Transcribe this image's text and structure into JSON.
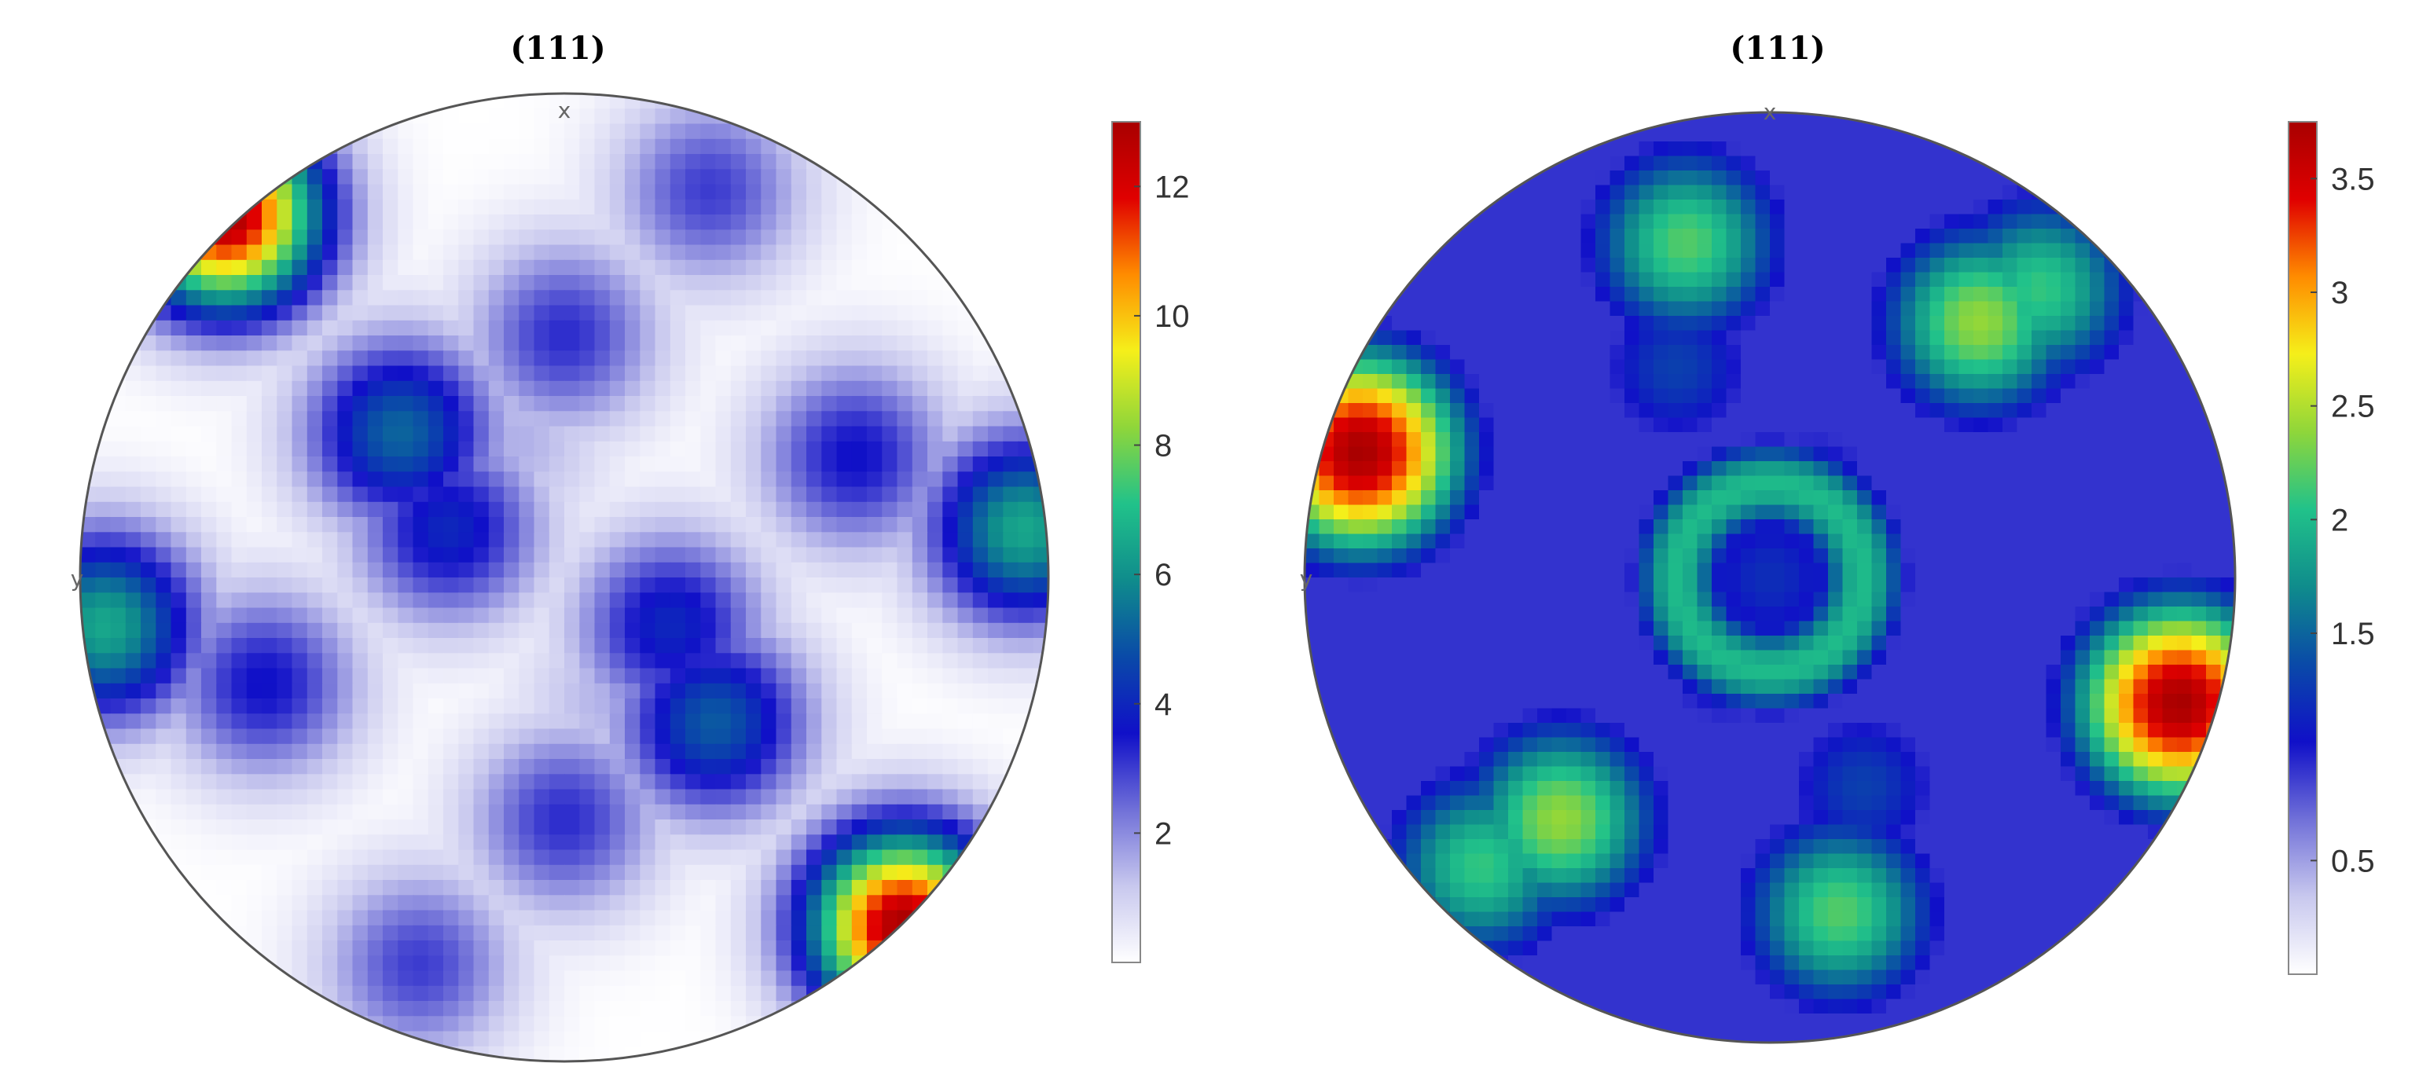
{
  "chart_data": [
    {
      "type": "heatmap",
      "title": "(111)",
      "x_axis_label": "x",
      "y_axis_label": "y",
      "colorbar": {
        "range": [
          0,
          13
        ],
        "ticks": [
          2,
          4,
          6,
          8,
          10,
          12
        ],
        "tick_labels": [
          "2",
          "4",
          "6",
          "8",
          "10",
          "12"
        ],
        "colormap": [
          "#ffffff",
          "#c8c8ee",
          "#7070d8",
          "#1010c8",
          "#0a4aa8",
          "#0f8c8c",
          "#21c28a",
          "#8fd63a",
          "#f5ef1a",
          "#ff8c00",
          "#e00000",
          "#a80000"
        ]
      },
      "peaks": [
        {
          "x": -0.7,
          "y": 0.75,
          "value": 13.0
        },
        {
          "x": 0.7,
          "y": -0.72,
          "value": 13.0
        },
        {
          "x": -0.34,
          "y": 0.3,
          "value": 5.2
        },
        {
          "x": -0.24,
          "y": 0.1,
          "value": 4.0
        },
        {
          "x": 0.31,
          "y": -0.3,
          "value": 5.0
        },
        {
          "x": 0.22,
          "y": -0.1,
          "value": 4.0
        },
        {
          "x": 0.0,
          "y": 0.5,
          "value": 3.2
        },
        {
          "x": 0.3,
          "y": 0.8,
          "value": 3.0
        },
        {
          "x": 0.6,
          "y": 0.25,
          "value": 3.6
        },
        {
          "x": -0.62,
          "y": -0.22,
          "value": 3.6
        },
        {
          "x": 0.0,
          "y": -0.5,
          "value": 3.2
        },
        {
          "x": -0.3,
          "y": -0.8,
          "value": 3.0
        },
        {
          "x": 0.95,
          "y": 0.1,
          "value": 6.5
        },
        {
          "x": -0.95,
          "y": -0.1,
          "value": 6.5
        },
        {
          "x": -0.1,
          "y": 0.28,
          "value": 1.5
        },
        {
          "x": 0.1,
          "y": -0.25,
          "value": 1.5
        }
      ]
    },
    {
      "type": "heatmap",
      "title": "(111)",
      "x_axis_label": "x",
      "y_axis_label": "y",
      "colorbar": {
        "range": [
          0,
          3.75
        ],
        "ticks": [
          0.5,
          1.5,
          2,
          2.5,
          3,
          3.5
        ],
        "tick_labels": [
          "0.5",
          "1.5",
          "2",
          "2.5",
          "3",
          "3.5"
        ],
        "colormap": [
          "#ffffff",
          "#c8c8ee",
          "#7070d8",
          "#1010c8",
          "#0a4aa8",
          "#0f8c8c",
          "#21c28a",
          "#8fd63a",
          "#f5ef1a",
          "#ff8c00",
          "#e00000",
          "#a80000"
        ]
      },
      "peaks": [
        {
          "x": -0.88,
          "y": 0.27,
          "value": 3.75
        },
        {
          "x": 0.88,
          "y": -0.27,
          "value": 3.75
        },
        {
          "x": -0.18,
          "y": 0.72,
          "value": 2.2
        },
        {
          "x": 0.15,
          "y": -0.72,
          "value": 2.2
        },
        {
          "x": 0.45,
          "y": 0.55,
          "value": 2.4
        },
        {
          "x": 0.58,
          "y": 0.62,
          "value": 2.1
        },
        {
          "x": -0.45,
          "y": -0.52,
          "value": 2.4
        },
        {
          "x": -0.62,
          "y": -0.62,
          "value": 2.1
        },
        {
          "x": 0.0,
          "y": 0.0,
          "value": 1.2
        },
        {
          "x": -0.2,
          "y": 0.45,
          "value": 1.3
        },
        {
          "x": 0.2,
          "y": -0.45,
          "value": 1.3
        },
        {
          "x": 0.1,
          "y": 0.2,
          "value": 1.1
        },
        {
          "x": -0.1,
          "y": -0.2,
          "value": 1.1
        }
      ],
      "ring": {
        "center": [
          0.0,
          0.0
        ],
        "radius": 0.2,
        "value": 2.0,
        "width": 0.08
      }
    }
  ]
}
